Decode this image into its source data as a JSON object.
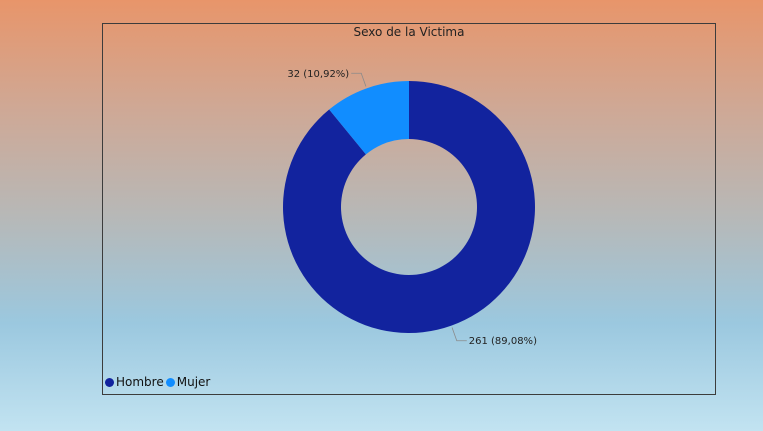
{
  "chart_data": {
    "type": "pie",
    "title": "Sexo de la Victima",
    "donut": true,
    "legend_position": "bottom-left",
    "slices": [
      {
        "name": "Hombre",
        "value": 261,
        "label": "261 (89,08%)",
        "color": "#12239e"
      },
      {
        "name": "Mujer",
        "value": 32,
        "label": "32 (10,92%)",
        "color": "#118dff"
      }
    ]
  }
}
